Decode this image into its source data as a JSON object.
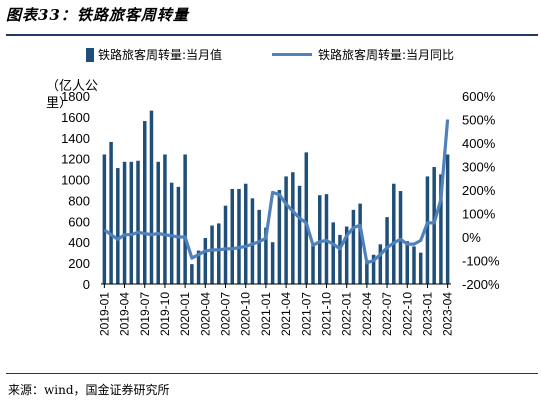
{
  "title": "图表33：铁路旅客周转量",
  "source": "来源：wind，国金证券研究所",
  "unit_label": "（亿人公里）",
  "colors": {
    "bar": "#1f4e79",
    "line": "#4f81bd",
    "rule": "#1f3864"
  },
  "chart_data": {
    "type": "bar",
    "series": [
      {
        "name": "铁路旅客周转量:当月值",
        "type": "bar",
        "axis": "left"
      },
      {
        "name": "铁路旅客周转量:当月同比",
        "type": "line",
        "axis": "right"
      }
    ],
    "left_axis": {
      "min": 0,
      "max": 1800,
      "ticks": [
        "0",
        "200",
        "400",
        "600",
        "800",
        "1000",
        "1200",
        "1400",
        "1600",
        "1800"
      ]
    },
    "right_axis": {
      "min": -200,
      "max": 600,
      "ticks": [
        "-200%",
        "-100%",
        "0%",
        "100%",
        "200%",
        "300%",
        "400%",
        "500%",
        "600%"
      ]
    },
    "x_tick_labels": [
      "2019-01",
      "2019-04",
      "2019-07",
      "2019-10",
      "2020-01",
      "2020-04",
      "2020-07",
      "2020-10",
      "2021-01",
      "2021-04",
      "2021-07",
      "2021-10",
      "2022-01",
      "2022-04",
      "2022-07",
      "2022-10",
      "2023-01",
      "2023-04"
    ],
    "months": [
      "2019-01",
      "2019-02",
      "2019-03",
      "2019-04",
      "2019-05",
      "2019-06",
      "2019-07",
      "2019-08",
      "2019-09",
      "2019-10",
      "2019-11",
      "2019-12",
      "2020-01",
      "2020-02",
      "2020-03",
      "2020-04",
      "2020-05",
      "2020-06",
      "2020-07",
      "2020-08",
      "2020-09",
      "2020-10",
      "2020-11",
      "2020-12",
      "2021-01",
      "2021-02",
      "2021-03",
      "2021-04",
      "2021-05",
      "2021-06",
      "2021-07",
      "2021-08",
      "2021-09",
      "2021-10",
      "2021-11",
      "2021-12",
      "2022-01",
      "2022-02",
      "2022-03",
      "2022-04",
      "2022-05",
      "2022-06",
      "2022-07",
      "2022-08",
      "2022-09",
      "2022-10",
      "2022-11",
      "2022-12",
      "2023-01",
      "2023-02",
      "2023-03",
      "2023-04"
    ],
    "bar_values": [
      1240,
      1360,
      1110,
      1170,
      1170,
      1180,
      1560,
      1660,
      1170,
      1240,
      970,
      930,
      1240,
      190,
      320,
      440,
      560,
      580,
      750,
      910,
      910,
      960,
      820,
      710,
      540,
      400,
      900,
      1030,
      1070,
      940,
      1260,
      370,
      850,
      860,
      590,
      470,
      550,
      710,
      770,
      230,
      280,
      380,
      640,
      960,
      890,
      410,
      360,
      300,
      1030,
      1120,
      1050,
      1240
    ],
    "yoy_values": [
      30,
      10,
      -10,
      10,
      10,
      20,
      15,
      10,
      15,
      10,
      5,
      0,
      0,
      -90,
      -75,
      -60,
      -55,
      -55,
      -50,
      -50,
      -45,
      -40,
      -30,
      -20,
      -5,
      190,
      180,
      140,
      110,
      80,
      60,
      -35,
      -20,
      -15,
      -30,
      -50,
      5,
      40,
      50,
      -110,
      -100,
      -75,
      -45,
      -25,
      -10,
      -30,
      -30,
      -15,
      60,
      60,
      160,
      500
    ]
  }
}
